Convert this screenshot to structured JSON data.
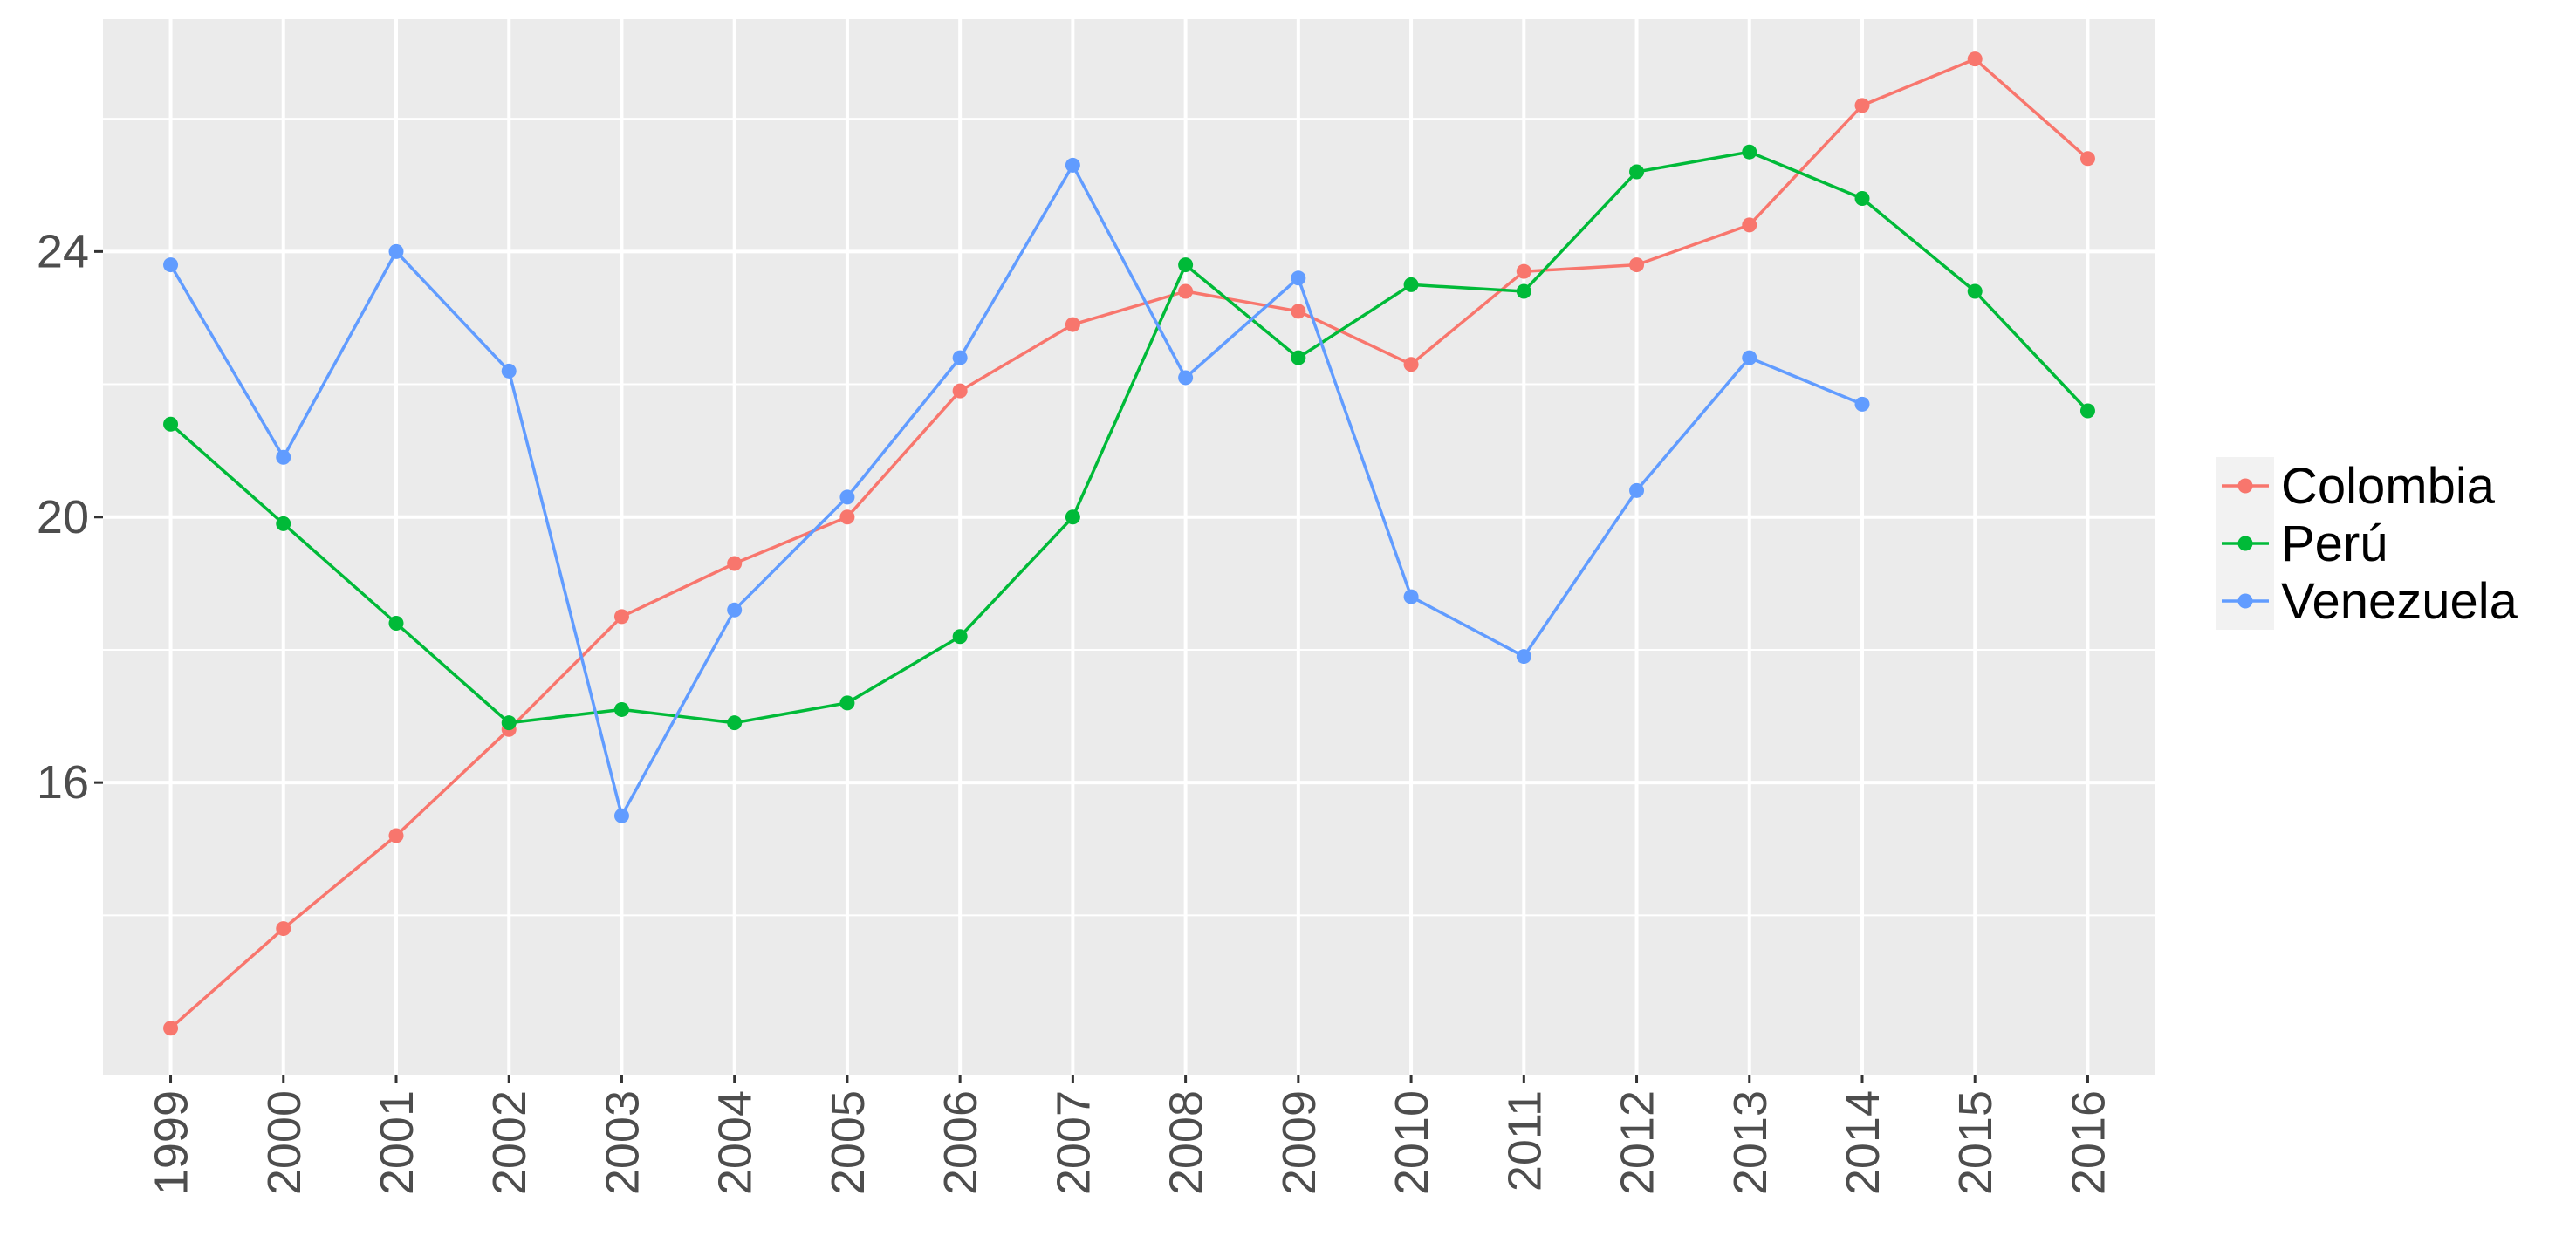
{
  "chart_data": {
    "type": "line",
    "title": "",
    "xlabel": "",
    "ylabel": "",
    "categories": [
      "1999",
      "2000",
      "2001",
      "2002",
      "2003",
      "2004",
      "2005",
      "2006",
      "2007",
      "2008",
      "2009",
      "2010",
      "2011",
      "2012",
      "2013",
      "2014",
      "2015",
      "2016"
    ],
    "ylim": [
      11.6,
      27.5
    ],
    "yticks": [
      16,
      20,
      24
    ],
    "y_minor_ticks": [
      14,
      18,
      22,
      26
    ],
    "grid": true,
    "legend_position": "right",
    "series": [
      {
        "name": "Colombia",
        "color": "#F8766D",
        "values": [
          12.3,
          13.8,
          15.2,
          16.8,
          18.5,
          19.3,
          20.0,
          21.9,
          22.9,
          23.4,
          23.1,
          22.3,
          23.7,
          23.8,
          24.4,
          26.2,
          26.9,
          25.4
        ]
      },
      {
        "name": "Perú",
        "color": "#00BA38",
        "values": [
          21.4,
          19.9,
          18.4,
          16.9,
          17.1,
          16.9,
          17.2,
          18.2,
          20.0,
          23.8,
          22.4,
          23.5,
          23.4,
          25.2,
          25.5,
          24.8,
          23.4,
          21.6
        ]
      },
      {
        "name": "Venezuela",
        "color": "#619CFF",
        "values": [
          23.8,
          20.9,
          24.0,
          22.2,
          15.5,
          18.6,
          20.3,
          22.4,
          25.3,
          22.1,
          23.6,
          18.8,
          17.9,
          20.4,
          22.4,
          21.7,
          null,
          null
        ]
      }
    ]
  }
}
